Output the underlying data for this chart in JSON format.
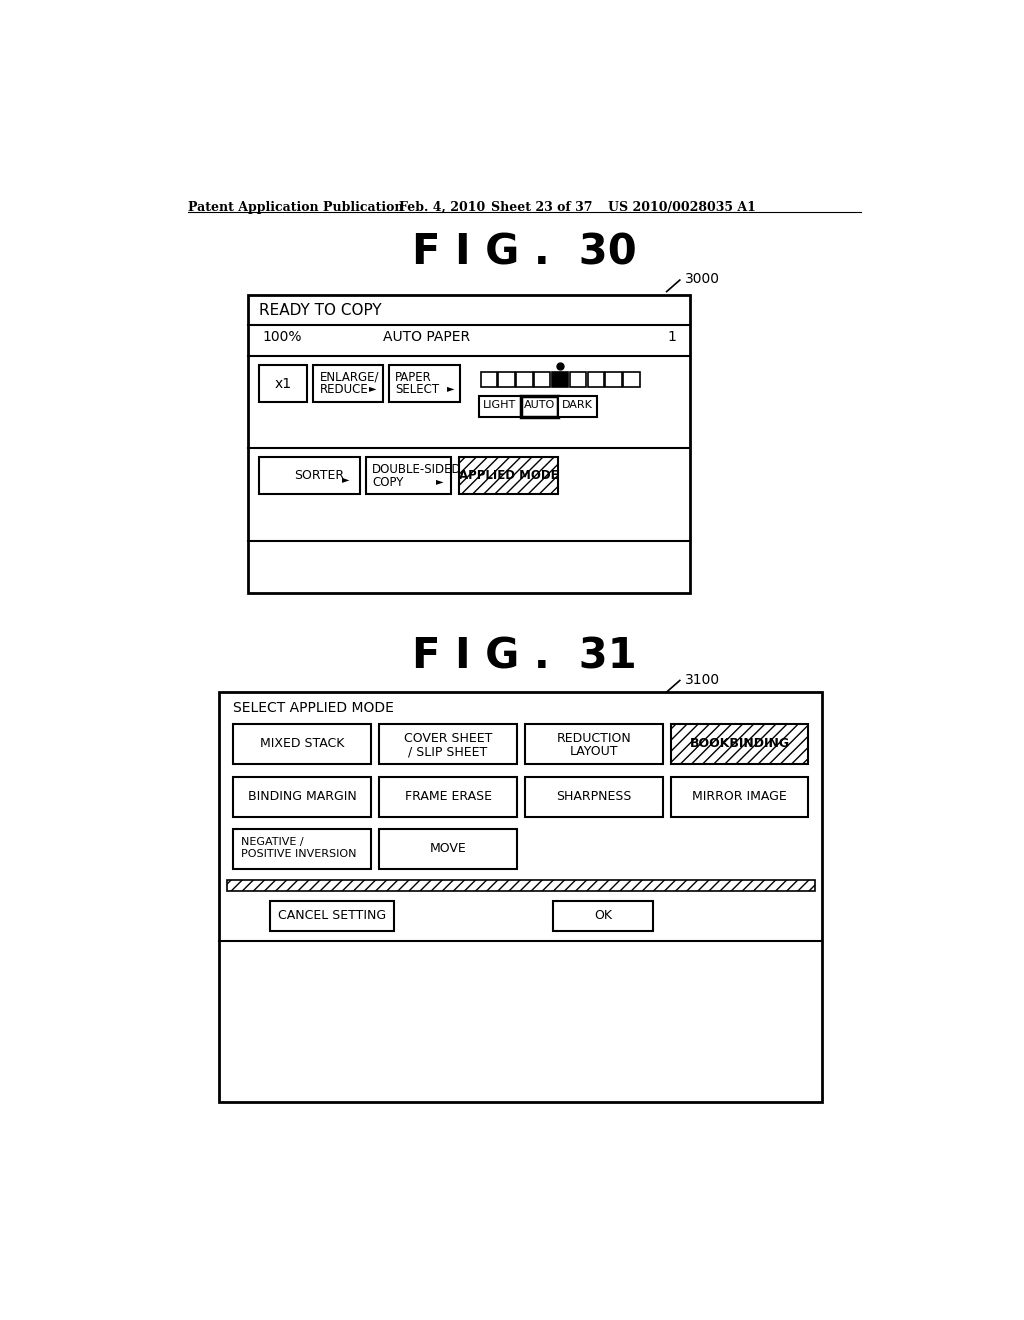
{
  "bg_color": "#ffffff",
  "header_text": "Patent Application Publication",
  "header_date": "Feb. 4, 2010",
  "header_sheet": "Sheet 23 of 37",
  "header_patent": "US 2010/0028035 A1",
  "fig30_title": "F I G .  30",
  "fig31_title": "F I G .  31",
  "fig30_label": "3000",
  "fig31_label": "3100"
}
